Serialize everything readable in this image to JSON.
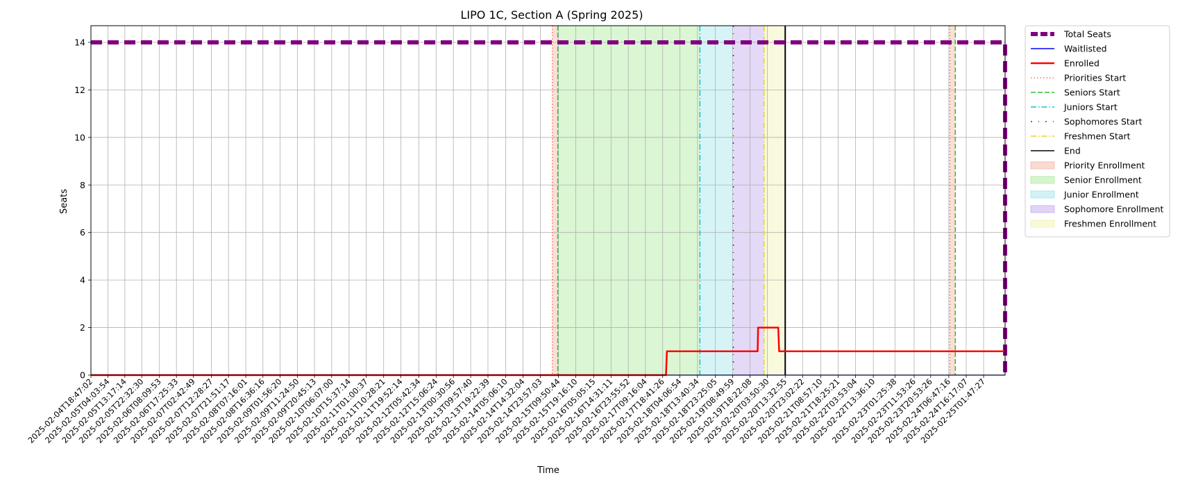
{
  "chart_data": {
    "type": "line",
    "title": "LIPO 1C, Section A (Spring 2025)",
    "xlabel": "Time",
    "ylabel": "Seats",
    "ylim": [
      0,
      14.7
    ],
    "yticks": [
      0,
      2,
      4,
      6,
      8,
      10,
      12,
      14
    ],
    "grid": true,
    "legend_position": "outside-right-top",
    "x_range": [
      "2025-02-04T18:47:02",
      "2025-02-25T13:30:00"
    ],
    "xticks": [
      "2025-02-04T18:47:02",
      "2025-02-05T04:03:54",
      "2025-02-05T13:17:14",
      "2025-02-05T22:32:30",
      "2025-02-06T08:09:53",
      "2025-02-06T17:25:33",
      "2025-02-07T02:42:49",
      "2025-02-07T12:28:27",
      "2025-02-07T21:51:17",
      "2025-02-08T07:16:01",
      "2025-02-08T16:36:16",
      "2025-02-09T01:56:20",
      "2025-02-09T11:24:50",
      "2025-02-09T20:45:13",
      "2025-02-10T06:07:00",
      "2025-02-10T15:37:14",
      "2025-02-11T01:00:37",
      "2025-02-11T10:28:21",
      "2025-02-11T19:52:14",
      "2025-02-12T05:42:34",
      "2025-02-12T15:06:24",
      "2025-02-13T00:30:56",
      "2025-02-13T09:57:40",
      "2025-02-13T19:22:39",
      "2025-02-14T05:06:10",
      "2025-02-14T14:32:04",
      "2025-02-14T23:57:03",
      "2025-02-15T09:50:44",
      "2025-02-15T19:16:10",
      "2025-02-16T05:05:15",
      "2025-02-16T14:31:11",
      "2025-02-16T23:55:52",
      "2025-02-17T09:16:04",
      "2025-02-17T18:41:26",
      "2025-02-18T04:06:54",
      "2025-02-18T13:40:34",
      "2025-02-18T23:25:05",
      "2025-02-19T08:49:59",
      "2025-02-19T18:22:08",
      "2025-02-20T03:50:30",
      "2025-02-20T13:32:55",
      "2025-02-20T23:02:22",
      "2025-02-21T08:57:10",
      "2025-02-21T18:25:21",
      "2025-02-22T03:53:04",
      "2025-02-22T13:36:10",
      "2025-02-23T01:25:38",
      "2025-02-23T11:53:26",
      "2025-02-23T20:53:26",
      "2025-02-24T06:47:16",
      "2025-02-24T16:17:07",
      "2025-02-25T01:47:27"
    ],
    "series": [
      {
        "name": "Total Seats",
        "color": "#800080",
        "style": "dashed-thick",
        "points": [
          [
            "2025-02-04T18:47:02",
            14
          ],
          [
            "2025-02-25T13:30:00",
            14
          ],
          [
            "2025-02-25T13:30:00",
            0
          ]
        ]
      },
      {
        "name": "Waitlisted",
        "color": "#0000ff",
        "style": "solid",
        "points": [
          [
            "2025-02-04T18:47:02",
            0
          ],
          [
            "2025-02-25T13:30:00",
            0
          ]
        ]
      },
      {
        "name": "Enrolled",
        "color": "#ff0000",
        "style": "solid-thick",
        "points": [
          [
            "2025-02-04T18:47:02",
            0
          ],
          [
            "2025-02-17T20:30:00",
            0
          ],
          [
            "2025-02-17T21:00:00",
            1
          ],
          [
            "2025-02-19T22:30:00",
            1
          ],
          [
            "2025-02-19T22:45:00",
            2
          ],
          [
            "2025-02-20T09:45:00",
            2
          ],
          [
            "2025-02-20T10:15:00",
            1
          ],
          [
            "2025-02-25T13:30:00",
            1
          ]
        ]
      }
    ],
    "vlines": [
      {
        "name": "Priorities Start",
        "color": "#ff6f52",
        "style": "dotted",
        "x": "2025-02-15T06:30:00"
      },
      {
        "name": "Seniors Start",
        "color": "#2ec22e",
        "style": "dashed",
        "x": "2025-02-15T09:30:00"
      },
      {
        "name": "Juniors Start",
        "color": "#17becf",
        "style": "dashdot",
        "x": "2025-02-18T15:00:00"
      },
      {
        "name": "Sophomores Start",
        "color": "#6a0dd8",
        "style": "dashdot-sparse",
        "x": "2025-02-19T09:15:00"
      },
      {
        "name": "Freshmen Start",
        "color": "#e6d21a",
        "style": "dashdot",
        "x": "2025-02-20T02:00:00"
      },
      {
        "name": "End",
        "color": "#000000",
        "style": "solid",
        "x": "2025-02-20T13:32:55"
      },
      {
        "name": "Priorities Start",
        "color": "#ff6f52",
        "style": "dotted",
        "x": "2025-02-24T07:20:00",
        "legend": false
      },
      {
        "name": "Seniors Start",
        "color": "#2ec22e",
        "style": "dashed",
        "x": "2025-02-24T10:20:00",
        "legend": false
      }
    ],
    "spans": [
      {
        "name": "Priority Enrollment",
        "color": "#f4b9a3",
        "start": "2025-02-15T06:30:00",
        "end": "2025-02-15T09:30:00"
      },
      {
        "name": "Senior Enrollment",
        "color": "#adeb9e",
        "start": "2025-02-15T09:30:00",
        "end": "2025-02-18T15:00:00"
      },
      {
        "name": "Junior Enrollment",
        "color": "#a3e6eb",
        "start": "2025-02-18T15:00:00",
        "end": "2025-02-19T09:15:00"
      },
      {
        "name": "Sophomore Enrollment",
        "color": "#c3aaee",
        "start": "2025-02-19T09:15:00",
        "end": "2025-02-20T02:00:00"
      },
      {
        "name": "Freshmen Enrollment",
        "color": "#f2f2b5",
        "start": "2025-02-20T02:00:00",
        "end": "2025-02-20T13:32:55"
      },
      {
        "name": "Priority Enrollment",
        "color": "#f4b9a3",
        "start": "2025-02-24T07:20:00",
        "end": "2025-02-24T10:20:00",
        "legend": false
      }
    ]
  }
}
